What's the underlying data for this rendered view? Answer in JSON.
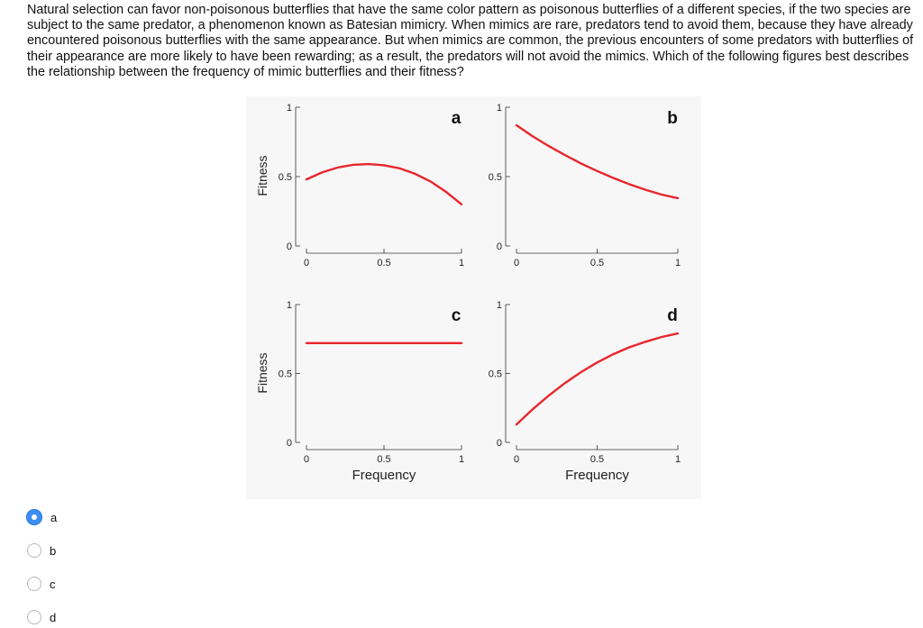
{
  "question": {
    "text": "Natural selection can favor non-poisonous butterflies that have the same color pattern as poisonous butterflies of a different species, if the two species are subject to the same predator, a phenomenon known as Batesian mimicry. When mimics are rare, predators tend to avoid them, because they have already encountered poisonous butterflies with the same appearance. But when mimics are common, the previous encounters of some predators with butterflies of their appearance are more likely to have been rewarding; as a result, the predators will not avoid the mimics. Which of the following figures best describes the relationship between the frequency of mimic butterflies and their fitness?"
  },
  "colors": {
    "curve": "#e8262c",
    "axis": "#333333",
    "radio_selected": "#3d8ef0"
  },
  "chart_data": [
    {
      "type": "line",
      "panel_label": "a",
      "ylabel": "Fitness",
      "xlabel": "",
      "xlim": [
        0,
        1
      ],
      "ylim": [
        0,
        1
      ],
      "xticks": [
        "0",
        "0.5",
        "1"
      ],
      "yticks": [
        "0",
        "0.5",
        "1"
      ],
      "x": [
        0,
        0.1,
        0.2,
        0.3,
        0.4,
        0.5,
        0.6,
        0.7,
        0.8,
        0.9,
        1.0
      ],
      "y": [
        0.48,
        0.53,
        0.565,
        0.585,
        0.59,
        0.582,
        0.56,
        0.52,
        0.465,
        0.39,
        0.3
      ]
    },
    {
      "type": "line",
      "panel_label": "b",
      "ylabel": "",
      "xlabel": "",
      "xlim": [
        0,
        1
      ],
      "ylim": [
        0,
        1
      ],
      "xticks": [
        "0",
        "0.5",
        "1"
      ],
      "yticks": [
        "0",
        "0.5",
        "1"
      ],
      "x": [
        0,
        0.1,
        0.2,
        0.3,
        0.4,
        0.5,
        0.6,
        0.7,
        0.8,
        0.9,
        1.0
      ],
      "y": [
        0.87,
        0.79,
        0.72,
        0.655,
        0.595,
        0.54,
        0.49,
        0.445,
        0.405,
        0.37,
        0.345
      ]
    },
    {
      "type": "line",
      "panel_label": "c",
      "ylabel": "Fitness",
      "xlabel": "Frequency",
      "xlim": [
        0,
        1
      ],
      "ylim": [
        0,
        1
      ],
      "xticks": [
        "0",
        "0.5",
        "1"
      ],
      "yticks": [
        "0",
        "0.5",
        "1"
      ],
      "x": [
        0,
        1.0
      ],
      "y": [
        0.72,
        0.72
      ]
    },
    {
      "type": "line",
      "panel_label": "d",
      "ylabel": "",
      "xlabel": "Frequency",
      "xlim": [
        0,
        1
      ],
      "ylim": [
        0,
        1
      ],
      "xticks": [
        "0",
        "0.5",
        "1"
      ],
      "yticks": [
        "0",
        "0.5",
        "1"
      ],
      "x": [
        0,
        0.1,
        0.2,
        0.3,
        0.4,
        0.5,
        0.6,
        0.7,
        0.8,
        0.9,
        1.0
      ],
      "y": [
        0.13,
        0.24,
        0.34,
        0.43,
        0.51,
        0.58,
        0.64,
        0.69,
        0.73,
        0.765,
        0.79
      ]
    }
  ],
  "options": [
    {
      "label": "a",
      "selected": true
    },
    {
      "label": "b",
      "selected": false
    },
    {
      "label": "c",
      "selected": false
    },
    {
      "label": "d",
      "selected": false
    }
  ]
}
